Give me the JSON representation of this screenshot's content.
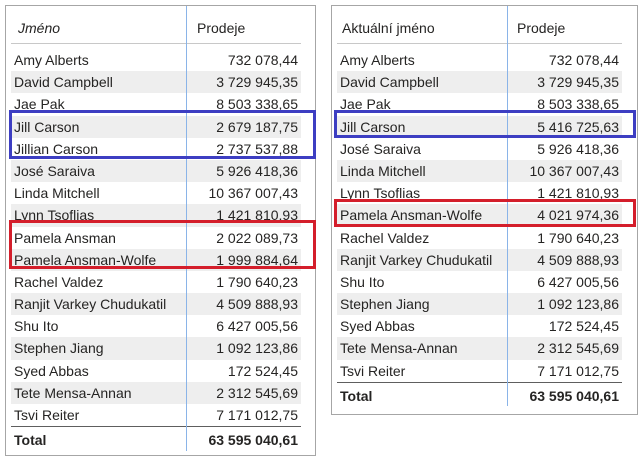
{
  "left_table": {
    "col_name": "Jméno",
    "col_value": "Prodeje",
    "rows": [
      {
        "name": "Amy Alberts",
        "value": "732 078,44"
      },
      {
        "name": "David Campbell",
        "value": "3 729 945,35"
      },
      {
        "name": "Jae Pak",
        "value": "8 503 338,65"
      },
      {
        "name": "Jill Carson",
        "value": "2 679 187,75"
      },
      {
        "name": "Jillian Carson",
        "value": "2 737 537,88"
      },
      {
        "name": "José Saraiva",
        "value": "5 926 418,36"
      },
      {
        "name": "Linda Mitchell",
        "value": "10 367 007,43"
      },
      {
        "name": "Lynn Tsoflias",
        "value": "1 421 810,93"
      },
      {
        "name": "Pamela Ansman",
        "value": "2 022 089,73"
      },
      {
        "name": "Pamela Ansman-Wolfe",
        "value": "1 999 884,64"
      },
      {
        "name": "Rachel Valdez",
        "value": "1 790 640,23"
      },
      {
        "name": "Ranjit Varkey Chudukatil",
        "value": "4 509 888,93"
      },
      {
        "name": "Shu Ito",
        "value": "6 427 005,56"
      },
      {
        "name": "Stephen Jiang",
        "value": "1 092 123,86"
      },
      {
        "name": "Syed Abbas",
        "value": "172 524,45"
      },
      {
        "name": "Tete Mensa-Annan",
        "value": "2 312 545,69"
      },
      {
        "name": "Tsvi Reiter",
        "value": "7 171 012,75"
      }
    ],
    "total_label": "Total",
    "total_value": "63 595 040,61"
  },
  "right_table": {
    "col_name": "Aktuální jméno",
    "col_value": "Prodeje",
    "rows": [
      {
        "name": "Amy Alberts",
        "value": "732 078,44"
      },
      {
        "name": "David Campbell",
        "value": "3 729 945,35"
      },
      {
        "name": "Jae Pak",
        "value": "8 503 338,65"
      },
      {
        "name": "Jill Carson",
        "value": "5 416 725,63"
      },
      {
        "name": "José Saraiva",
        "value": "5 926 418,36"
      },
      {
        "name": "Linda Mitchell",
        "value": "10 367 007,43"
      },
      {
        "name": "Lynn Tsoflias",
        "value": "1 421 810,93"
      },
      {
        "name": "Pamela Ansman-Wolfe",
        "value": "4 021 974,36"
      },
      {
        "name": "Rachel Valdez",
        "value": "1 790 640,23"
      },
      {
        "name": "Ranjit Varkey Chudukatil",
        "value": "4 509 888,93"
      },
      {
        "name": "Shu Ito",
        "value": "6 427 005,56"
      },
      {
        "name": "Stephen Jiang",
        "value": "1 092 123,86"
      },
      {
        "name": "Syed Abbas",
        "value": "172 524,45"
      },
      {
        "name": "Tete Mensa-Annan",
        "value": "2 312 545,69"
      },
      {
        "name": "Tsvi Reiter",
        "value": "7 171 012,75"
      }
    ],
    "total_label": "Total",
    "total_value": "63 595 040,61"
  },
  "colors": {
    "highlight_blue": "#3d3ec2",
    "highlight_red": "#d41e2b",
    "column_divider": "#8ab4e8",
    "alt_row": "#eeeeee"
  }
}
